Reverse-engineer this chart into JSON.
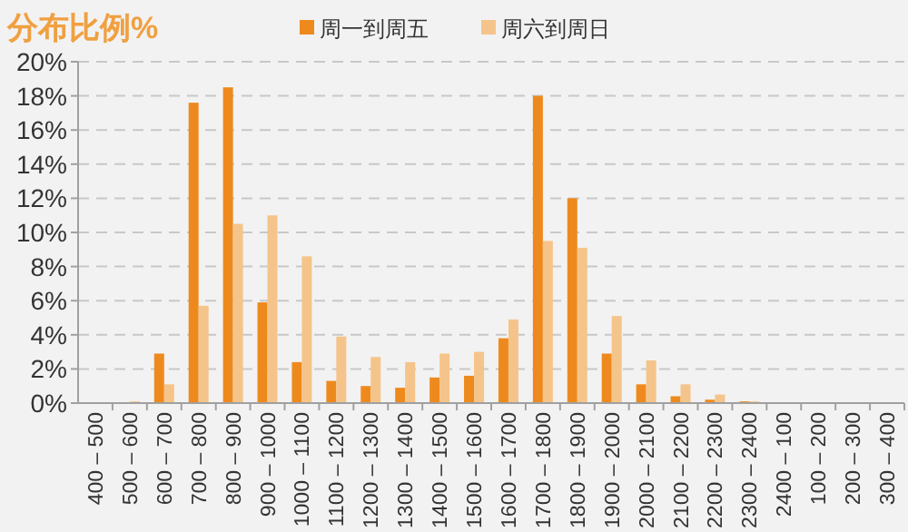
{
  "chart_data": {
    "type": "bar",
    "title": "分布比例%",
    "categories": [
      "400 – 500",
      "500 – 600",
      "600 – 700",
      "700 – 800",
      "800 – 900",
      "900 – 1000",
      "1000 – 1100",
      "1100 – 1200",
      "1200 – 1300",
      "1300 – 1400",
      "1400 – 1500",
      "1500 – 1600",
      "1600 – 1700",
      "1700 – 1800",
      "1800 – 1900",
      "1900 – 2000",
      "2000 – 2100",
      "2100 – 2200",
      "2200 – 2300",
      "2300 – 2400",
      "2400 – 100",
      "100 – 200",
      "200 – 300",
      "300 – 400"
    ],
    "series": [
      {
        "name": "周一到周五",
        "color": "#ee8a1d",
        "values": [
          0,
          0,
          2.9,
          17.6,
          18.5,
          5.9,
          2.4,
          1.3,
          1.0,
          0.9,
          1.5,
          1.6,
          3.8,
          18.0,
          12.0,
          2.9,
          1.1,
          0.4,
          0.2,
          0.1,
          0,
          0,
          0,
          0
        ]
      },
      {
        "name": "周六到周日",
        "color": "#f5c48a",
        "values": [
          0,
          0.1,
          1.1,
          5.7,
          10.5,
          11.0,
          8.6,
          3.9,
          2.7,
          2.4,
          2.9,
          3.0,
          4.9,
          9.5,
          9.1,
          5.1,
          2.5,
          1.1,
          0.5,
          0.1,
          0,
          0,
          0,
          0
        ]
      }
    ],
    "ylim": [
      0,
      20
    ],
    "yticks": [
      {
        "value": 0,
        "label": "0%"
      },
      {
        "value": 2,
        "label": "2%"
      },
      {
        "value": 4,
        "label": "4%"
      },
      {
        "value": 6,
        "label": "6%"
      },
      {
        "value": 8,
        "label": "8%"
      },
      {
        "value": 10,
        "label": "10%"
      },
      {
        "value": 12,
        "label": "12%"
      },
      {
        "value": 14,
        "label": "14%"
      },
      {
        "value": 16,
        "label": "16%"
      },
      {
        "value": 18,
        "label": "18%"
      },
      {
        "value": 20,
        "label": "20%"
      }
    ],
    "grid": "y",
    "legend": "top"
  }
}
